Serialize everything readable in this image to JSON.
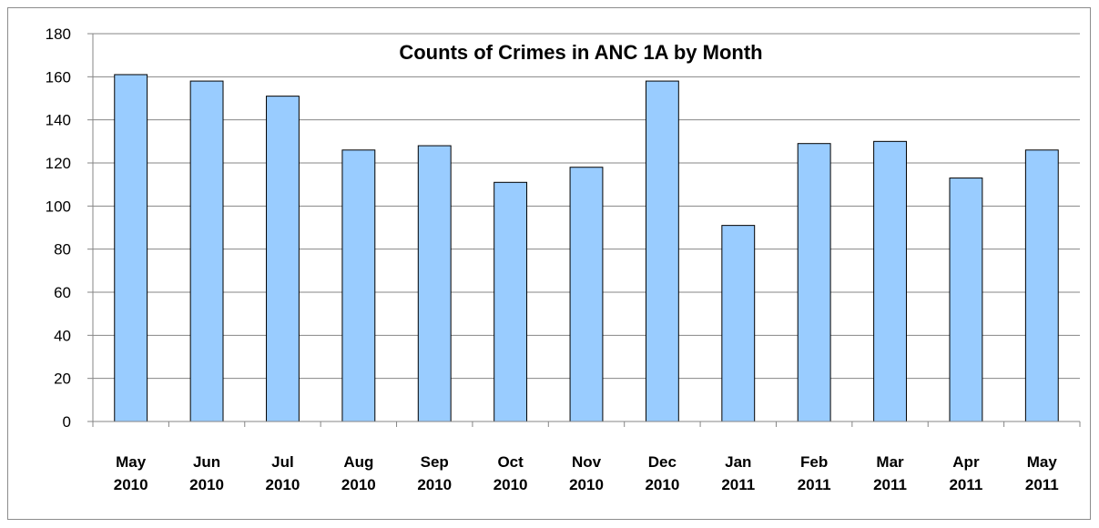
{
  "chart_data": {
    "type": "bar",
    "title": "Counts of Crimes in ANC 1A by Month",
    "xlabel": "",
    "ylabel": "",
    "categories": [
      [
        "May",
        "2010"
      ],
      [
        "Jun",
        "2010"
      ],
      [
        "Jul",
        "2010"
      ],
      [
        "Aug",
        "2010"
      ],
      [
        "Sep",
        "2010"
      ],
      [
        "Oct",
        "2010"
      ],
      [
        "Nov",
        "2010"
      ],
      [
        "Dec",
        "2010"
      ],
      [
        "Jan",
        "2011"
      ],
      [
        "Feb",
        "2011"
      ],
      [
        "Mar",
        "2011"
      ],
      [
        "Apr",
        "2011"
      ],
      [
        "May",
        "2011"
      ]
    ],
    "values": [
      161,
      158,
      151,
      126,
      128,
      111,
      118,
      158,
      91,
      129,
      130,
      113,
      126
    ],
    "ylim": [
      0,
      180
    ],
    "yticks": [
      "0",
      "20",
      "40",
      "60",
      "80",
      "100",
      "120",
      "140",
      "160",
      "180"
    ],
    "grid": true,
    "legend": "none",
    "colors": {
      "bar_fill": "#99CCFF",
      "bar_stroke": "#000000",
      "grid": "#868686"
    }
  }
}
